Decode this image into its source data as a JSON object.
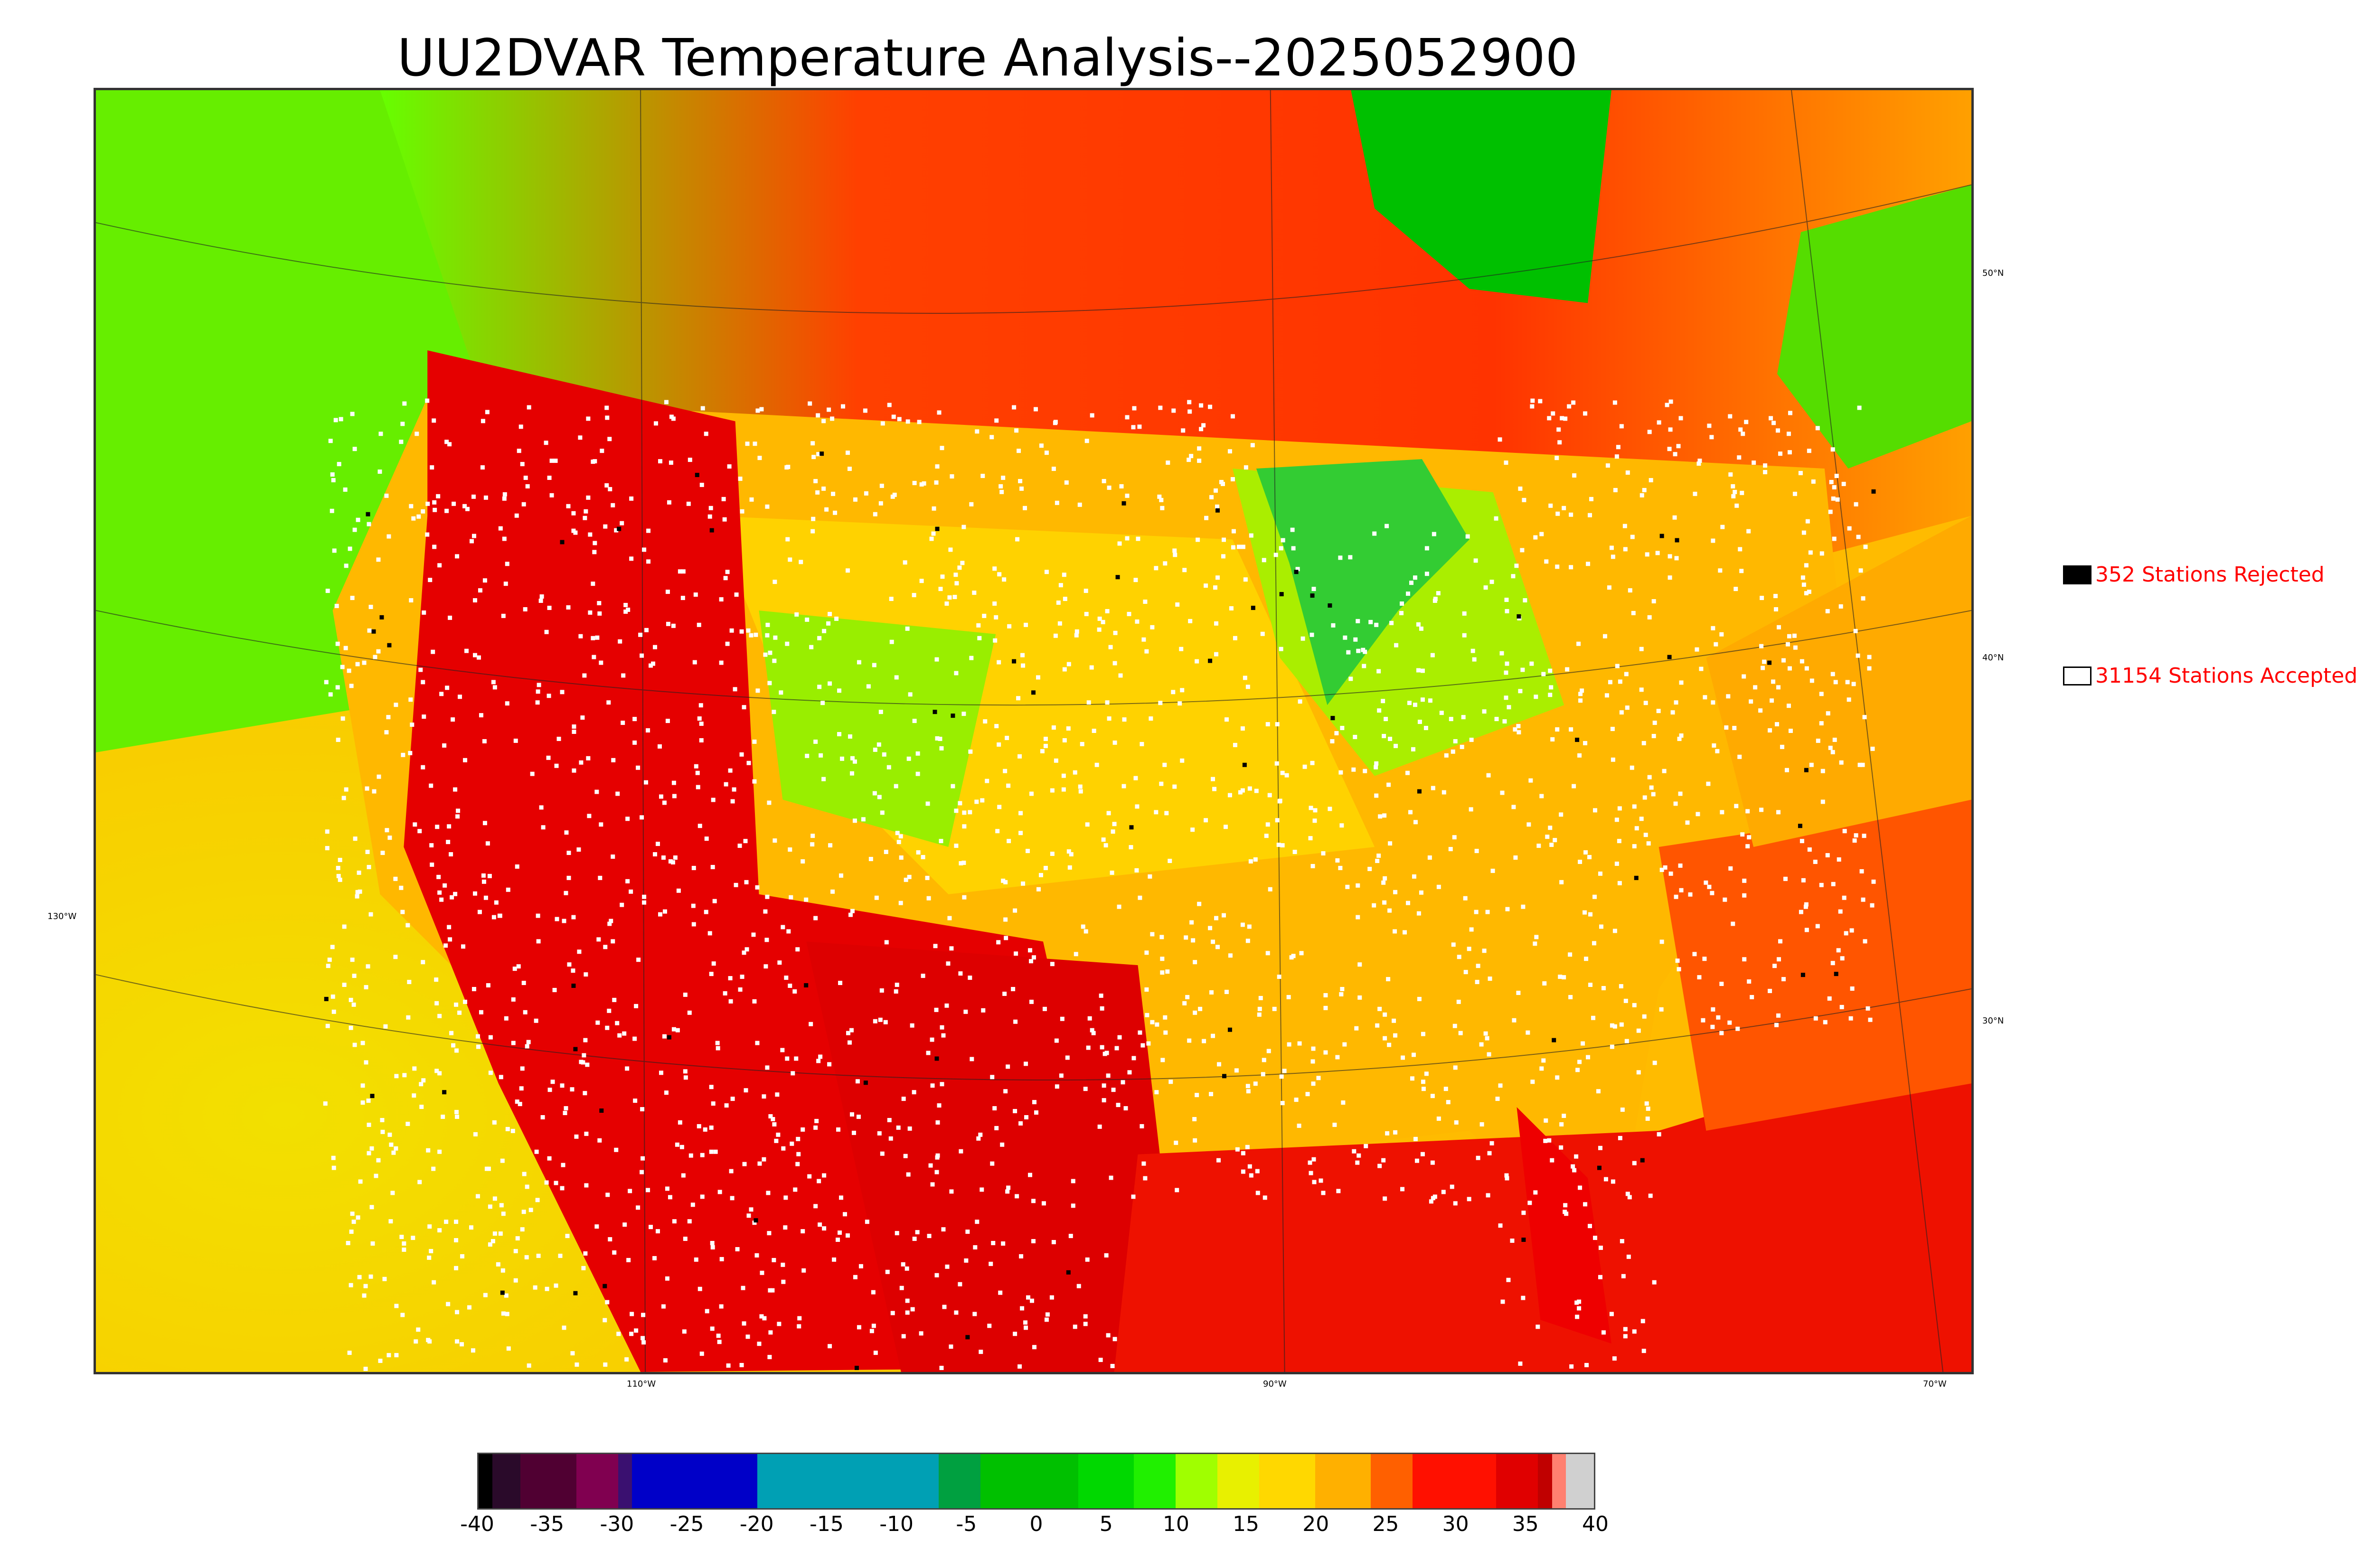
{
  "title": "UU2DVAR Temperature Analysis--2025052900",
  "legend": {
    "rejected_label": "352 Stations Rejected",
    "accepted_label": "31154 Stations Accepted",
    "rejected_color": "#000000",
    "accepted_color": "#ffffff",
    "text_color": "#ff0000"
  },
  "map": {
    "longitude_labels": [
      "110°W",
      "90°W",
      "70°W"
    ],
    "latitude_labels_right": [
      "50°N",
      "40°N",
      "30°N"
    ],
    "longitude_label_left": "130°W",
    "background_colors": {
      "hot": "#e00000",
      "warm": "#ff9900",
      "mild": "#f2d400",
      "cool": "#8cff00",
      "cold": "#00c800",
      "station_accepted": "#ffffff",
      "station_rejected": "#000000"
    }
  },
  "colorbar": {
    "ticks": [
      "-40",
      "-35",
      "-30",
      "-25",
      "-20",
      "-15",
      "-10",
      "-5",
      "0",
      "5",
      "10",
      "15",
      "20",
      "25",
      "30",
      "35",
      "40"
    ],
    "min": -40,
    "max": 40,
    "segments": [
      {
        "from": -40,
        "to": -39,
        "color": "#000000"
      },
      {
        "from": -39,
        "to": -37,
        "color": "#2a0a2a"
      },
      {
        "from": -37,
        "to": -33,
        "color": "#500032"
      },
      {
        "from": -33,
        "to": -30,
        "color": "#800050"
      },
      {
        "from": -30,
        "to": -29,
        "color": "#3a1070"
      },
      {
        "from": -29,
        "to": -20,
        "color": "#0000c8"
      },
      {
        "from": -20,
        "to": -7,
        "color": "#00a0b4"
      },
      {
        "from": -7,
        "to": -4,
        "color": "#00a040"
      },
      {
        "from": -4,
        "to": 3,
        "color": "#00c000"
      },
      {
        "from": 3,
        "to": 7,
        "color": "#00d800"
      },
      {
        "from": 7,
        "to": 10,
        "color": "#20f000"
      },
      {
        "from": 10,
        "to": 13,
        "color": "#a0ff00"
      },
      {
        "from": 13,
        "to": 16,
        "color": "#e8f000"
      },
      {
        "from": 16,
        "to": 20,
        "color": "#ffd800"
      },
      {
        "from": 20,
        "to": 24,
        "color": "#ffb000"
      },
      {
        "from": 24,
        "to": 27,
        "color": "#ff6000"
      },
      {
        "from": 27,
        "to": 33,
        "color": "#ff1000"
      },
      {
        "from": 33,
        "to": 36,
        "color": "#e00000"
      },
      {
        "from": 36,
        "to": 37,
        "color": "#c00000"
      },
      {
        "from": 37,
        "to": 38,
        "color": "#ff8070"
      },
      {
        "from": 38,
        "to": 40,
        "color": "#d0d0d0"
      }
    ]
  }
}
